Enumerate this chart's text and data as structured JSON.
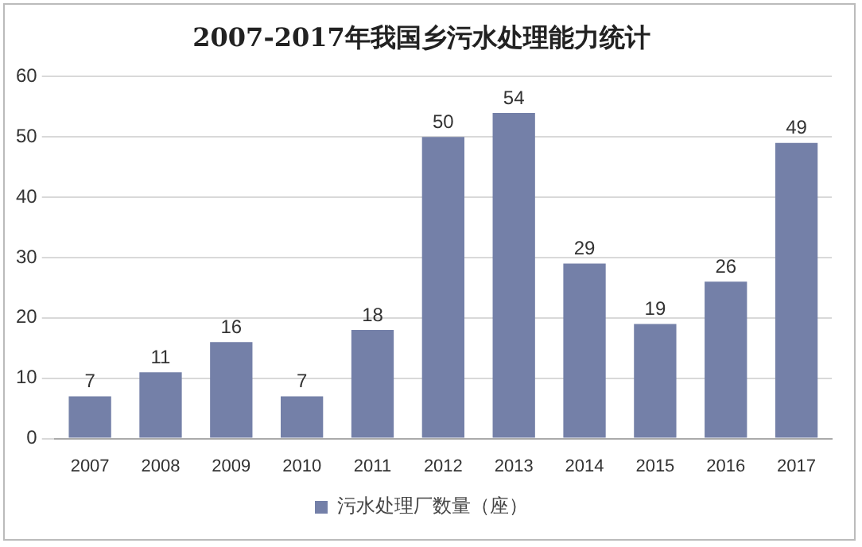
{
  "chart_data": {
    "type": "bar",
    "title": "2007-2017年我国乡污水处理能力统计",
    "categories": [
      "2007",
      "2008",
      "2009",
      "2010",
      "2011",
      "2012",
      "2013",
      "2014",
      "2015",
      "2016",
      "2017"
    ],
    "series": [
      {
        "name": "污水处理厂数量（座）",
        "color": "#7480a8",
        "values": [
          7,
          11,
          16,
          7,
          18,
          50,
          54,
          29,
          19,
          26,
          49
        ]
      }
    ],
    "ylim": [
      0,
      60
    ],
    "yticks": [
      0,
      10,
      20,
      30,
      40,
      50,
      60
    ],
    "grid": "y",
    "legend": "bottom",
    "data_labels": true
  }
}
